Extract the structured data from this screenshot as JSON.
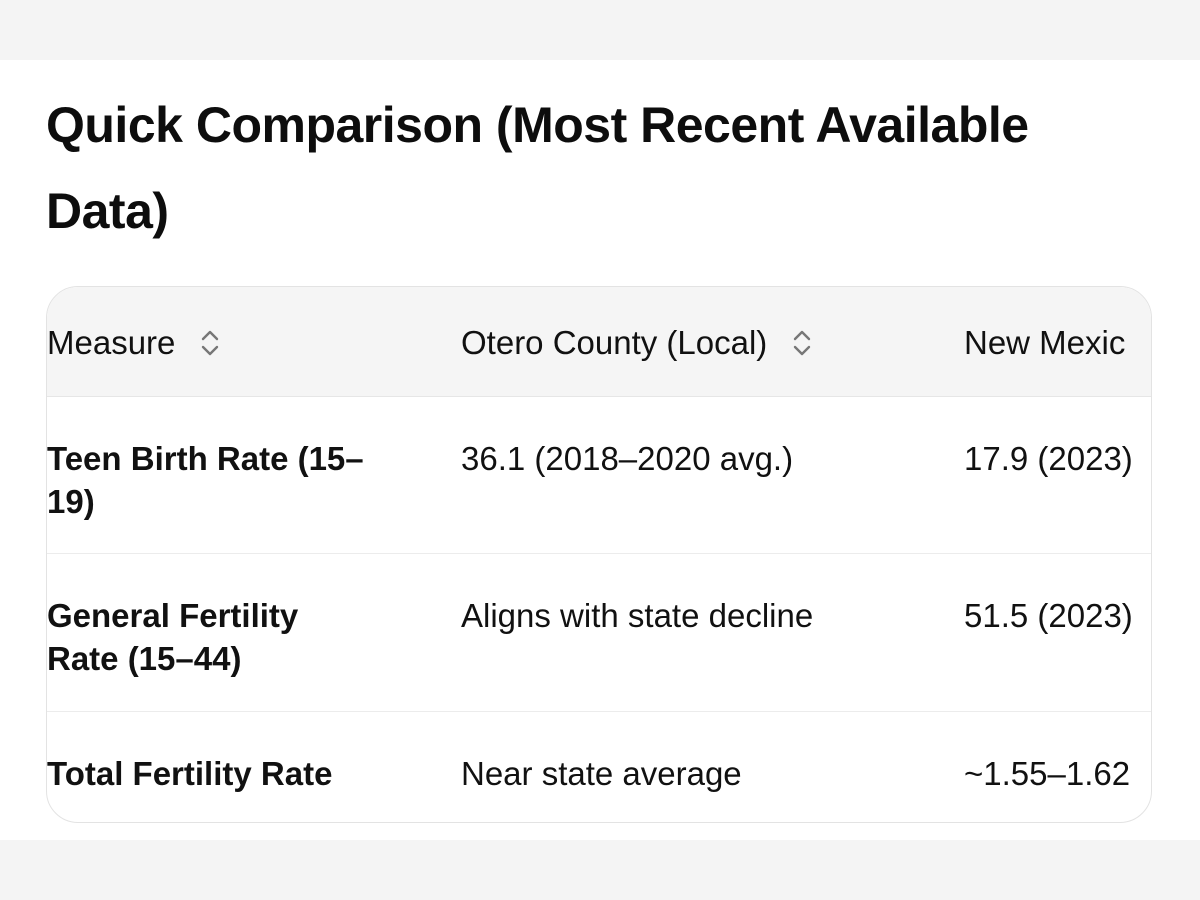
{
  "heading": "Quick Comparison (Most Recent Available Data)",
  "table": {
    "columns": [
      {
        "label": "Measure",
        "sortable": true
      },
      {
        "label": "Otero County (Local)",
        "sortable": true
      },
      {
        "label": "New Mexic",
        "sortable": false
      }
    ],
    "rows": [
      {
        "measure": "Teen Birth Rate (15–19)",
        "otero": "36.1 (2018–2020 avg.)",
        "nm": "17.9 (2023)"
      },
      {
        "measure": "General Fertility Rate (15–44)",
        "otero": "Aligns with state decline",
        "nm": "51.5 (2023)"
      },
      {
        "measure": "Total Fertility Rate",
        "otero": "Near state average",
        "nm": "~1.55–1.62"
      }
    ]
  },
  "icons": {
    "sort": "sort-updown-icon"
  }
}
